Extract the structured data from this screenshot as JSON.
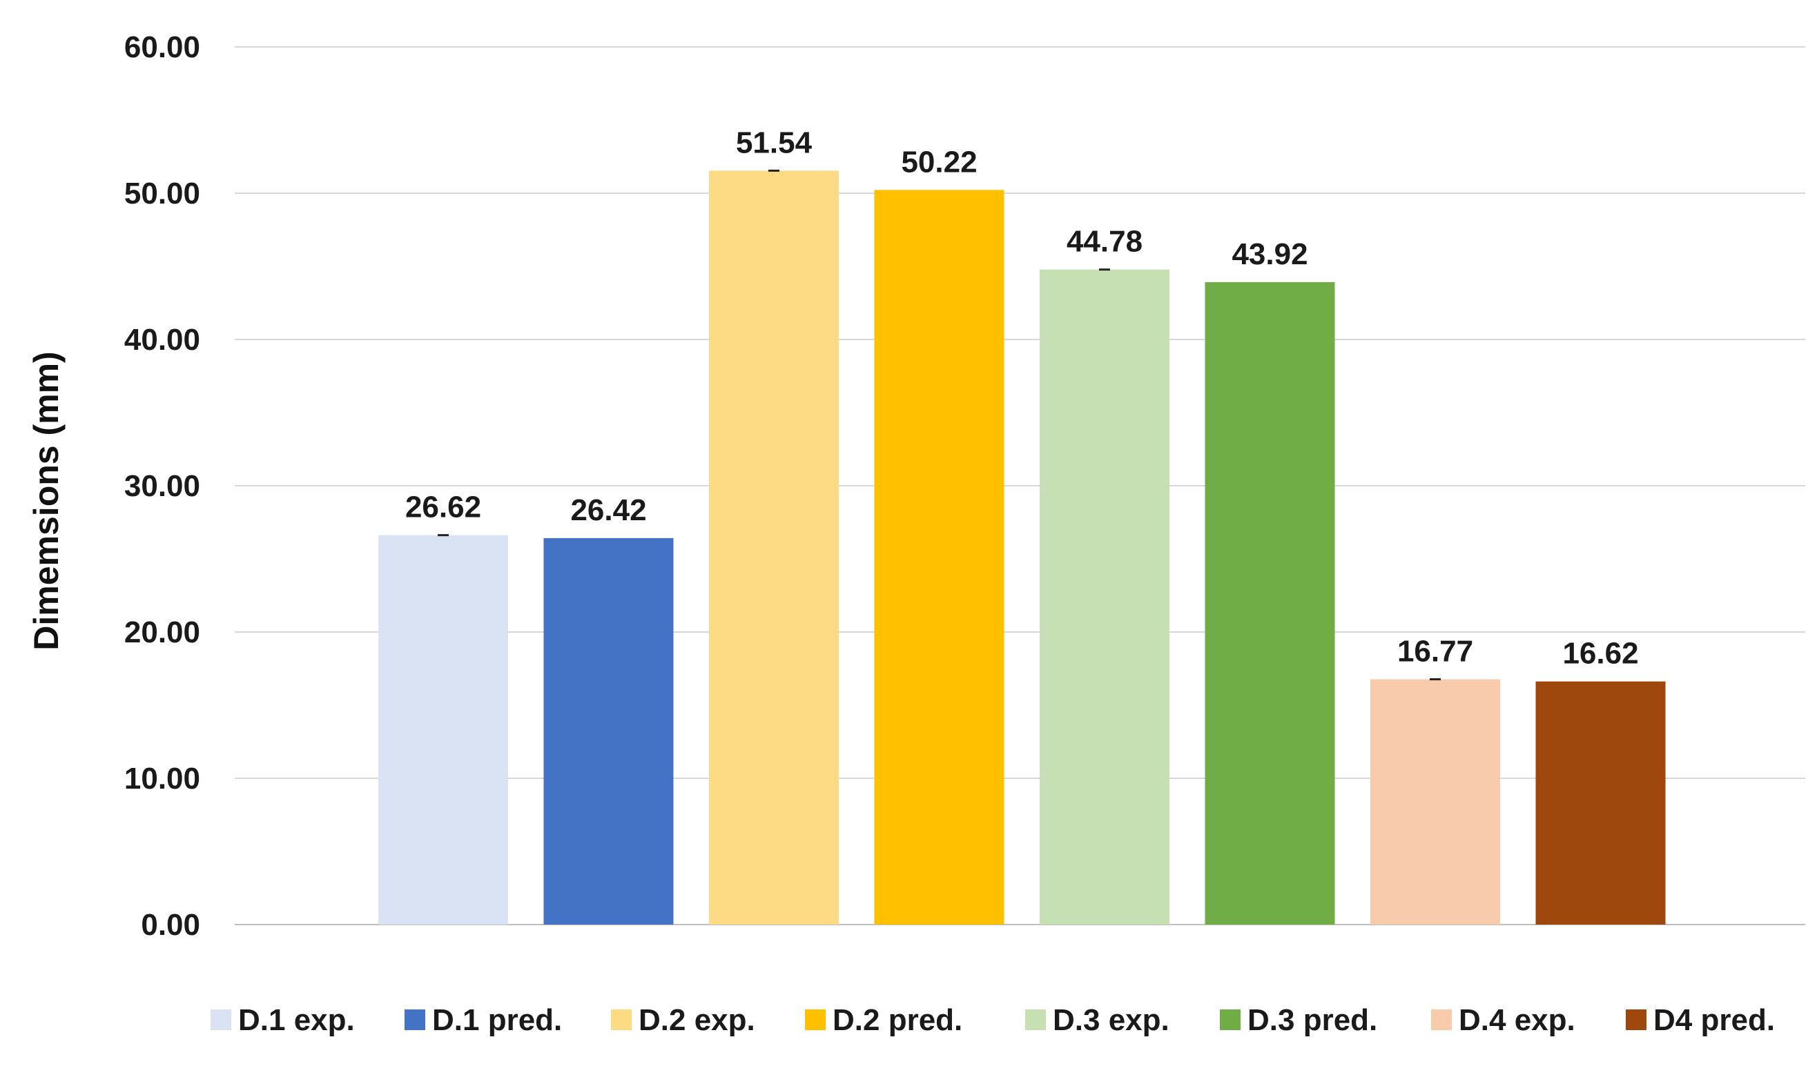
{
  "chart_data": {
    "type": "bar",
    "title": "",
    "xlabel": "",
    "ylabel": "Dimemsions (mm)",
    "ylim": [
      0,
      60
    ],
    "yticks": [
      "0.00",
      "10.00",
      "20.00",
      "30.00",
      "40.00",
      "50.00",
      "60.00"
    ],
    "grid": true,
    "legend_position": "bottom",
    "categories": [
      "D.1 exp.",
      "D.1 pred.",
      "D.2 exp.",
      "D.2 pred.",
      "D.3 exp.",
      "D.3 pred.",
      "D.4 exp.",
      "D4 pred."
    ],
    "values": [
      26.62,
      26.42,
      51.54,
      50.22,
      44.78,
      43.92,
      16.77,
      16.62
    ],
    "value_labels": [
      "26.62",
      "26.42",
      "51.54",
      "50.22",
      "44.78",
      "43.92",
      "16.77",
      "16.62"
    ],
    "colors": [
      "#dae3f3",
      "#4472c4",
      "#fcdb84",
      "#ffc000",
      "#c6e0b4",
      "#70ad47",
      "#f8cbad",
      "#9e480e"
    ],
    "error_bars": [
      true,
      false,
      true,
      false,
      true,
      false,
      true,
      false
    ]
  }
}
